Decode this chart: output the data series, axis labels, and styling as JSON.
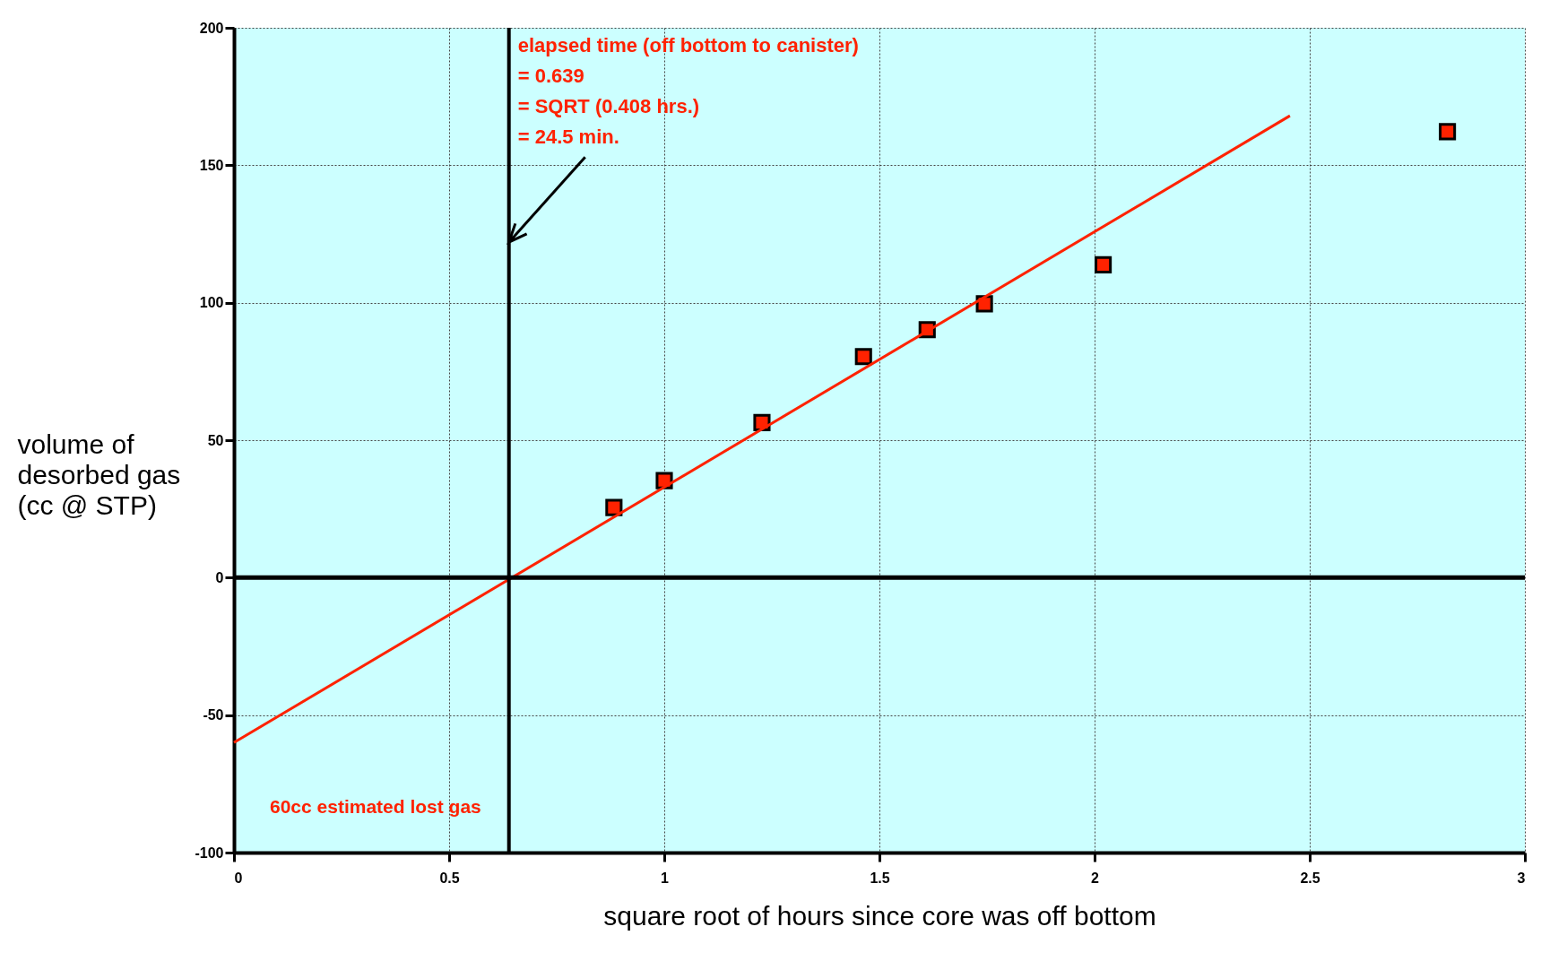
{
  "chart_data": {
    "type": "scatter",
    "xlabel": "square root of hours since core was off bottom",
    "ylabel": "volume of desorbed gas (cc @ STP)",
    "xlim": [
      0,
      3
    ],
    "xticks": [
      0,
      0.5,
      1,
      1.5,
      2,
      2.5,
      3
    ],
    "ylim": [
      -100,
      200
    ],
    "yticks": [
      -100,
      -50,
      0,
      50,
      100,
      150,
      200
    ],
    "grid": true,
    "marker": "square",
    "series": [
      {
        "color": "#ff2200",
        "x": [
          0.883,
          1.0,
          1.227,
          1.463,
          1.611,
          1.744,
          2.02,
          2.82
        ],
        "values": [
          25.5,
          35.3,
          56.4,
          80.4,
          90.2,
          99.6,
          113.8,
          162.2
        ]
      },
      {
        "type": "line",
        "marker": "none",
        "color": "#ff2200",
        "x": [
          0,
          2.454
        ],
        "values": [
          -60,
          168
        ]
      }
    ],
    "ref_lines": [
      {
        "axis": "y",
        "value": 0,
        "color": "#000000"
      },
      {
        "axis": "x",
        "value": 0.639,
        "color": "#000000"
      }
    ],
    "annotations": [
      {
        "text": "elapsed time (off bottom to canister)\n= 0.639\n= SQRT (0.408 hrs.)\n= 24.5 min.",
        "x": 0.639,
        "y": 122
      },
      "60cc estimated lost gas"
    ]
  }
}
